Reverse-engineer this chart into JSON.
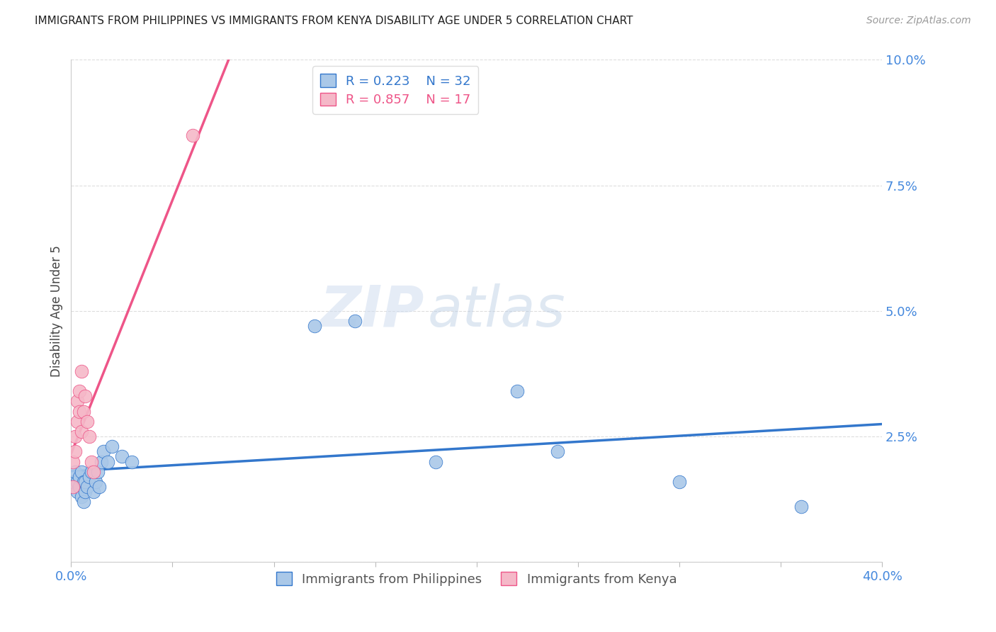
{
  "title": "IMMIGRANTS FROM PHILIPPINES VS IMMIGRANTS FROM KENYA DISABILITY AGE UNDER 5 CORRELATION CHART",
  "source": "Source: ZipAtlas.com",
  "ylabel": "Disability Age Under 5",
  "xlim": [
    0.0,
    0.4
  ],
  "ylim": [
    0.0,
    0.1
  ],
  "xticks": [
    0.0,
    0.05,
    0.1,
    0.15,
    0.2,
    0.25,
    0.3,
    0.35,
    0.4
  ],
  "yticks": [
    0.0,
    0.025,
    0.05,
    0.075,
    0.1
  ],
  "philippines_color": "#aac8e8",
  "kenya_color": "#f5b8c8",
  "trendline_philippines_color": "#3377cc",
  "trendline_kenya_color": "#ee5588",
  "trendline_kenya_dash_color": "#cccccc",
  "R_philippines": 0.223,
  "N_philippines": 32,
  "R_kenya": 0.857,
  "N_kenya": 17,
  "philippines_x": [
    0.001,
    0.002,
    0.003,
    0.003,
    0.004,
    0.004,
    0.005,
    0.005,
    0.006,
    0.006,
    0.007,
    0.007,
    0.008,
    0.009,
    0.01,
    0.011,
    0.012,
    0.013,
    0.014,
    0.015,
    0.016,
    0.018,
    0.02,
    0.025,
    0.03,
    0.12,
    0.14,
    0.18,
    0.22,
    0.24,
    0.3,
    0.36
  ],
  "philippines_y": [
    0.016,
    0.018,
    0.014,
    0.016,
    0.015,
    0.017,
    0.013,
    0.018,
    0.012,
    0.016,
    0.014,
    0.016,
    0.015,
    0.017,
    0.018,
    0.014,
    0.016,
    0.018,
    0.015,
    0.02,
    0.022,
    0.02,
    0.023,
    0.021,
    0.02,
    0.047,
    0.048,
    0.02,
    0.034,
    0.022,
    0.016,
    0.011
  ],
  "kenya_x": [
    0.001,
    0.001,
    0.002,
    0.002,
    0.003,
    0.003,
    0.004,
    0.004,
    0.005,
    0.005,
    0.006,
    0.007,
    0.008,
    0.009,
    0.01,
    0.011,
    0.06
  ],
  "kenya_y": [
    0.015,
    0.02,
    0.022,
    0.025,
    0.028,
    0.032,
    0.03,
    0.034,
    0.026,
    0.038,
    0.03,
    0.033,
    0.028,
    0.025,
    0.02,
    0.018,
    0.085
  ],
  "watermark_zip": "ZIP",
  "watermark_atlas": "atlas",
  "background_color": "#ffffff",
  "grid_color": "#dddddd",
  "axis_color": "#4488dd",
  "title_color": "#222222",
  "source_color": "#999999",
  "ylabel_color": "#444444",
  "marker_size": 180
}
